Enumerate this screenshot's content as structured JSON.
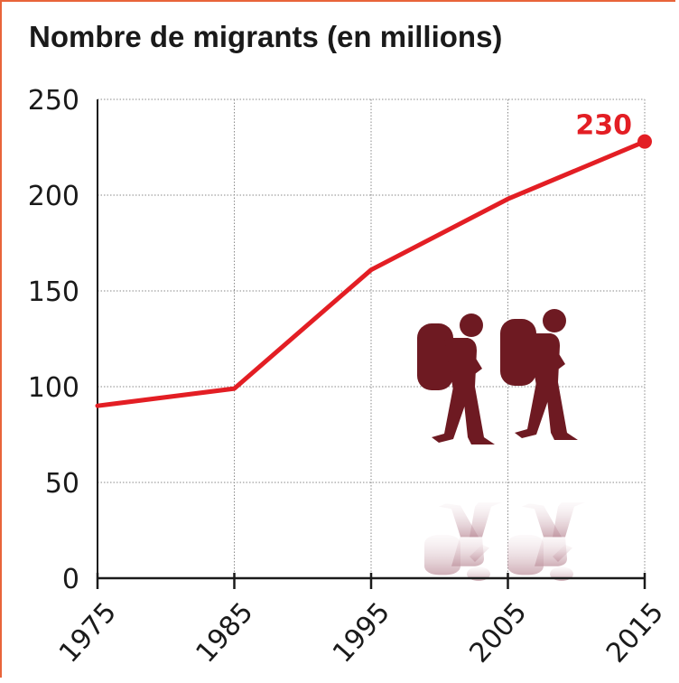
{
  "chart_data": {
    "type": "line",
    "title": "Nombre de migrants (en millions)",
    "xlabel": "",
    "ylabel": "",
    "x": [
      "1975",
      "1985",
      "1995",
      "2005",
      "2015"
    ],
    "series": [
      {
        "values": [
          90,
          99,
          161,
          198,
          228
        ],
        "color": "#e31e24"
      }
    ],
    "ylim": [
      0,
      250
    ],
    "yticks": [
      "0",
      "50",
      "100",
      "150",
      "200",
      "250"
    ],
    "annotations": [
      {
        "text": "230",
        "x": "2015",
        "color": "#e31e24"
      }
    ],
    "grid": true,
    "legend": "none"
  },
  "colors": {
    "line": "#e31e24",
    "frame": "#e8643a",
    "figure": "#6e1a22",
    "grid": "#8a8a8a"
  },
  "decoration": {
    "icon": "hikers-with-backpacks-icon"
  }
}
